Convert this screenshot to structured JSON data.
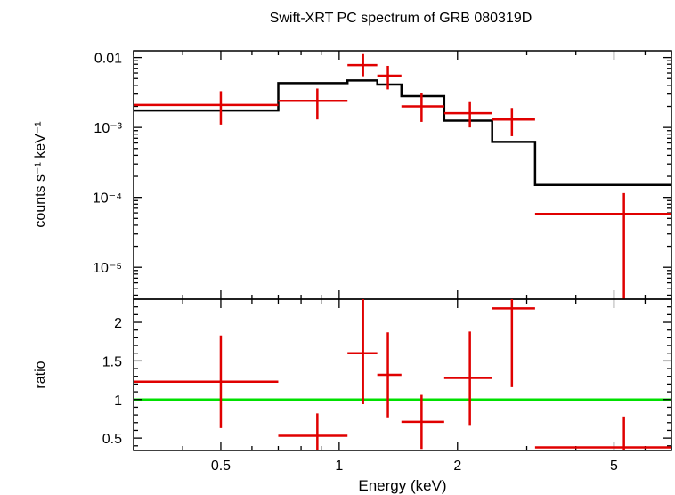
{
  "chart_data": {
    "type": "spectrum",
    "title": "Swift-XRT PC spectrum of GRB 080319D",
    "xlabel": "Energy (keV)",
    "x_scale": "log",
    "xlim": [
      0.3,
      7.0
    ],
    "x_ticks": [
      {
        "value": 0.5,
        "label": "0.5"
      },
      {
        "value": 1,
        "label": "1"
      },
      {
        "value": 2,
        "label": "2"
      },
      {
        "value": 5,
        "label": "5"
      }
    ],
    "top_panel": {
      "ylabel": "counts s⁻¹ keV⁻¹",
      "y_scale": "log",
      "ylim": [
        3.5e-06,
        0.0125
      ],
      "y_ticks": [
        {
          "value": 0.01,
          "label": "0.01"
        },
        {
          "value": 0.001,
          "label": "10⁻³"
        },
        {
          "value": 0.0001,
          "label": "10⁻⁴"
        },
        {
          "value": 1e-05,
          "label": "10⁻⁵"
        }
      ],
      "data_color": "#e00000",
      "model_color": "#000000",
      "data": [
        {
          "x": 0.5,
          "x_lo": 0.3,
          "x_hi": 0.7,
          "y": 0.0021,
          "y_lo": 0.0011,
          "y_hi": 0.0033
        },
        {
          "x": 0.88,
          "x_lo": 0.7,
          "x_hi": 1.05,
          "y": 0.0024,
          "y_lo": 0.0013,
          "y_hi": 0.0036
        },
        {
          "x": 1.15,
          "x_lo": 1.05,
          "x_hi": 1.25,
          "y": 0.0078,
          "y_lo": 0.0054,
          "y_hi": 0.0112
        },
        {
          "x": 1.33,
          "x_lo": 1.25,
          "x_hi": 1.44,
          "y": 0.0055,
          "y_lo": 0.0035,
          "y_hi": 0.0076
        },
        {
          "x": 1.62,
          "x_lo": 1.44,
          "x_hi": 1.85,
          "y": 0.002,
          "y_lo": 0.0012,
          "y_hi": 0.0031
        },
        {
          "x": 2.15,
          "x_lo": 1.85,
          "x_hi": 2.45,
          "y": 0.0016,
          "y_lo": 0.001,
          "y_hi": 0.0023
        },
        {
          "x": 2.75,
          "x_lo": 2.45,
          "x_hi": 3.15,
          "y": 0.0013,
          "y_lo": 0.00075,
          "y_hi": 0.0019
        },
        {
          "x": 5.3,
          "x_lo": 3.15,
          "x_hi": 7.0,
          "y": 5.8e-05,
          "y_lo": 3.5e-06,
          "y_hi": 0.000115
        }
      ],
      "model_steps": [
        {
          "x_lo": 0.3,
          "x_hi": 0.7,
          "y": 0.00175
        },
        {
          "x_lo": 0.7,
          "x_hi": 1.05,
          "y": 0.0043
        },
        {
          "x_lo": 1.05,
          "x_hi": 1.25,
          "y": 0.0047
        },
        {
          "x_lo": 1.25,
          "x_hi": 1.44,
          "y": 0.0041
        },
        {
          "x_lo": 1.44,
          "x_hi": 1.85,
          "y": 0.0028
        },
        {
          "x_lo": 1.85,
          "x_hi": 2.45,
          "y": 0.00125
        },
        {
          "x_lo": 2.45,
          "x_hi": 3.15,
          "y": 0.00062
        },
        {
          "x_lo": 3.15,
          "x_hi": 7.0,
          "y": 0.00015
        }
      ]
    },
    "bottom_panel": {
      "ylabel": "ratio",
      "y_scale": "linear",
      "ylim": [
        0.34,
        2.3
      ],
      "y_ticks": [
        {
          "value": 0.5,
          "label": "0.5"
        },
        {
          "value": 1,
          "label": "1"
        },
        {
          "value": 1.5,
          "label": "1.5"
        },
        {
          "value": 2,
          "label": "2"
        }
      ],
      "reference_line": 1,
      "reference_color": "#00e000",
      "data_color": "#e00000",
      "data": [
        {
          "x": 0.5,
          "x_lo": 0.3,
          "x_hi": 0.7,
          "y": 1.23,
          "y_lo": 0.63,
          "y_hi": 1.83
        },
        {
          "x": 0.88,
          "x_lo": 0.7,
          "x_hi": 1.05,
          "y": 0.53,
          "y_lo": 0.35,
          "y_hi": 0.82
        },
        {
          "x": 1.15,
          "x_lo": 1.05,
          "x_hi": 1.25,
          "y": 1.6,
          "y_lo": 0.94,
          "y_hi": 2.3
        },
        {
          "x": 1.33,
          "x_lo": 1.25,
          "x_hi": 1.44,
          "y": 1.32,
          "y_lo": 0.77,
          "y_hi": 1.87
        },
        {
          "x": 1.62,
          "x_lo": 1.44,
          "x_hi": 1.85,
          "y": 0.71,
          "y_lo": 0.36,
          "y_hi": 1.06
        },
        {
          "x": 2.15,
          "x_lo": 1.85,
          "x_hi": 2.45,
          "y": 1.28,
          "y_lo": 0.67,
          "y_hi": 1.88
        },
        {
          "x": 2.75,
          "x_lo": 2.45,
          "x_hi": 3.15,
          "y": 2.18,
          "y_lo": 1.16,
          "y_hi": 2.3
        },
        {
          "x": 5.3,
          "x_lo": 3.15,
          "x_hi": 7.0,
          "y": 0.38,
          "y_lo": 0.34,
          "y_hi": 0.78
        }
      ]
    }
  }
}
